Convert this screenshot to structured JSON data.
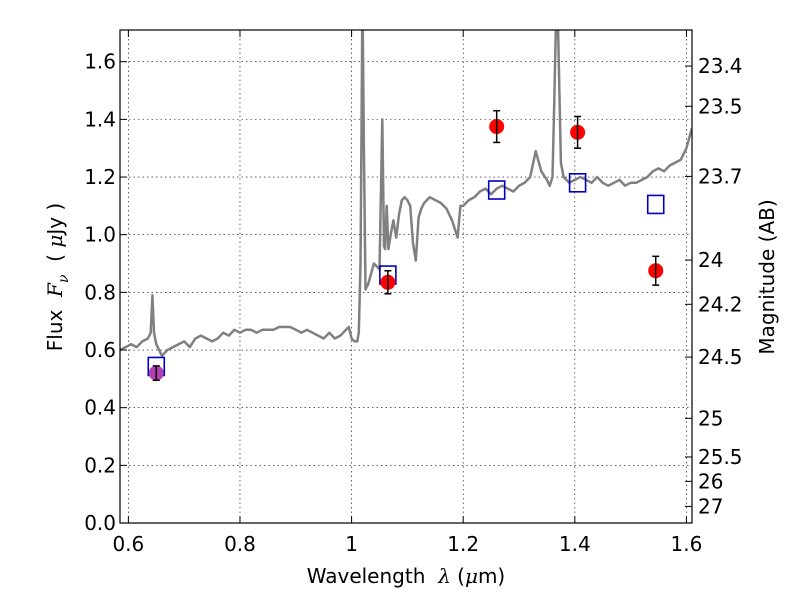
{
  "chart_data": {
    "type": "line",
    "xlabel_parts": [
      "Wavelength  ",
      "λ",
      " (",
      "μ",
      "m)"
    ],
    "ylabel_parts": [
      "Flux  ",
      "F",
      "ν",
      "  ( ",
      "μ",
      "Jy )"
    ],
    "y2label": "Magnitude (AB)",
    "xlim": [
      0.585,
      1.61
    ],
    "ylim": [
      0.0,
      1.71
    ],
    "grid": true,
    "x_ticks": [
      0.6,
      0.8,
      1.0,
      1.2,
      1.4,
      1.6
    ],
    "x_tick_labels": [
      "0.6",
      "0.8",
      "1",
      "1.2",
      "1.4",
      "1.6"
    ],
    "y_ticks": [
      0.0,
      0.2,
      0.4,
      0.6,
      0.8,
      1.0,
      1.2,
      1.4,
      1.6
    ],
    "y_tick_labels": [
      "0.0",
      "0.2",
      "0.4",
      "0.6",
      "0.8",
      "1.0",
      "1.2",
      "1.4",
      "1.6"
    ],
    "mag_ticks": [
      23.4,
      23.5,
      23.7,
      24,
      24.2,
      24.5,
      25,
      25.5,
      26,
      27
    ],
    "mag_tick_labels": [
      "23.4",
      "23.5",
      "23.7",
      "24",
      "24.2",
      "24.5",
      "25",
      "25.5",
      "26",
      "27"
    ],
    "spectrum": {
      "color": "#808080",
      "x": [
        0.585,
        0.595,
        0.605,
        0.615,
        0.625,
        0.635,
        0.64,
        0.643,
        0.646,
        0.65,
        0.655,
        0.66,
        0.67,
        0.68,
        0.69,
        0.7,
        0.71,
        0.72,
        0.73,
        0.74,
        0.75,
        0.76,
        0.77,
        0.78,
        0.79,
        0.8,
        0.81,
        0.82,
        0.83,
        0.84,
        0.85,
        0.86,
        0.87,
        0.88,
        0.89,
        0.9,
        0.91,
        0.92,
        0.93,
        0.94,
        0.95,
        0.96,
        0.97,
        0.98,
        0.99,
        0.995,
        1.0,
        1.005,
        1.01,
        1.013,
        1.016,
        1.018,
        1.019,
        1.02,
        1.022,
        1.025,
        1.03,
        1.04,
        1.05,
        1.055,
        1.058,
        1.06,
        1.063,
        1.066,
        1.07,
        1.075,
        1.08,
        1.085,
        1.09,
        1.095,
        1.1,
        1.105,
        1.11,
        1.115,
        1.12,
        1.125,
        1.13,
        1.135,
        1.14,
        1.15,
        1.16,
        1.17,
        1.18,
        1.19,
        1.195,
        1.2,
        1.21,
        1.22,
        1.23,
        1.24,
        1.25,
        1.26,
        1.27,
        1.28,
        1.29,
        1.3,
        1.31,
        1.32,
        1.33,
        1.34,
        1.35,
        1.355,
        1.36,
        1.363,
        1.366,
        1.37,
        1.375,
        1.38,
        1.39,
        1.4,
        1.41,
        1.42,
        1.43,
        1.44,
        1.45,
        1.46,
        1.47,
        1.48,
        1.49,
        1.5,
        1.51,
        1.52,
        1.53,
        1.54,
        1.55,
        1.56,
        1.57,
        1.58,
        1.59,
        1.6,
        1.61
      ],
      "y": [
        0.6,
        0.61,
        0.62,
        0.61,
        0.63,
        0.64,
        0.66,
        0.79,
        0.66,
        0.62,
        0.6,
        0.58,
        0.6,
        0.61,
        0.62,
        0.63,
        0.61,
        0.64,
        0.65,
        0.64,
        0.63,
        0.64,
        0.66,
        0.65,
        0.67,
        0.66,
        0.67,
        0.67,
        0.66,
        0.67,
        0.67,
        0.67,
        0.68,
        0.68,
        0.68,
        0.67,
        0.66,
        0.67,
        0.66,
        0.65,
        0.64,
        0.66,
        0.64,
        0.65,
        0.67,
        0.68,
        0.64,
        0.63,
        0.63,
        0.66,
        0.9,
        1.4,
        1.71,
        1.71,
        1.3,
        0.81,
        0.83,
        0.9,
        0.88,
        1.4,
        0.96,
        0.95,
        1.1,
        0.95,
        1.0,
        1.05,
        0.99,
        1.07,
        1.12,
        1.13,
        1.12,
        1.1,
        0.97,
        0.91,
        1.06,
        1.09,
        1.11,
        1.12,
        1.13,
        1.12,
        1.11,
        1.09,
        1.05,
        0.99,
        1.1,
        1.1,
        1.12,
        1.13,
        1.15,
        1.16,
        1.14,
        1.16,
        1.17,
        1.16,
        1.15,
        1.17,
        1.18,
        1.2,
        1.29,
        1.22,
        1.19,
        1.17,
        1.2,
        1.45,
        1.71,
        1.71,
        1.25,
        1.2,
        1.18,
        1.19,
        1.2,
        1.19,
        1.18,
        1.2,
        1.18,
        1.17,
        1.18,
        1.19,
        1.17,
        1.18,
        1.18,
        1.19,
        1.2,
        1.22,
        1.23,
        1.22,
        1.24,
        1.25,
        1.26,
        1.3,
        1.37
      ]
    },
    "synthetic_photometry": {
      "color": "#0000c0",
      "x": [
        0.65,
        1.065,
        1.26,
        1.405,
        1.545
      ],
      "y": [
        0.543,
        0.86,
        1.155,
        1.18,
        1.105
      ]
    },
    "observed_photometry": {
      "color": "#ff0000",
      "x": [
        0.65,
        1.065,
        1.26,
        1.405,
        1.545
      ],
      "y": [
        0.52,
        0.835,
        1.375,
        1.355,
        0.875
      ],
      "yerr": [
        0.025,
        0.04,
        0.055,
        0.055,
        0.05
      ],
      "marker_colors": [
        "#b040b0",
        "#ff0000",
        "#ff0000",
        "#ff0000",
        "#ff0000"
      ]
    }
  }
}
